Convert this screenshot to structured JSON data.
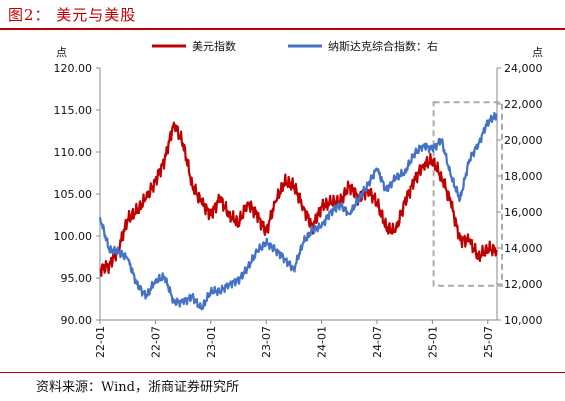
{
  "header": {
    "figure_title": "图2：   美元与美股"
  },
  "footer": {
    "source": "资料来源：Wind，浙商证券研究所"
  },
  "chart_data": {
    "type": "line",
    "left_unit": "点",
    "right_unit": "点",
    "legend_placement": "top-center",
    "x_ticks": [
      "22-01",
      "22-07",
      "23-01",
      "23-07",
      "24-01",
      "24-07",
      "25-01",
      "25-07"
    ],
    "x_range": [
      "2022-01",
      "2025-08"
    ],
    "y_left": {
      "ticks": [
        "90.00",
        "95.00",
        "100.00",
        "105.00",
        "110.00",
        "115.00",
        "120.00"
      ],
      "ylim": [
        90,
        120
      ]
    },
    "y_right": {
      "ticks": [
        "10,000",
        "12,000",
        "14,000",
        "16,000",
        "18,000",
        "20,000",
        "22,000",
        "24,000"
      ],
      "ylim": [
        10000,
        24000
      ]
    },
    "grid": false,
    "series": [
      {
        "name": "美元指数",
        "axis": "left",
        "color": "#c00000",
        "x": [
          "2022-01",
          "2022-02",
          "2022-03",
          "2022-04",
          "2022-05",
          "2022-06",
          "2022-07",
          "2022-08",
          "2022-09",
          "2022-10",
          "2022-11",
          "2022-12",
          "2023-01",
          "2023-02",
          "2023-03",
          "2023-04",
          "2023-05",
          "2023-06",
          "2023-07",
          "2023-08",
          "2023-09",
          "2023-10",
          "2023-11",
          "2023-12",
          "2024-01",
          "2024-02",
          "2024-03",
          "2024-04",
          "2024-05",
          "2024-06",
          "2024-07",
          "2024-08",
          "2024-09",
          "2024-10",
          "2024-11",
          "2024-12",
          "2025-01",
          "2025-02",
          "2025-03",
          "2025-04",
          "2025-05",
          "2025-06",
          "2025-07",
          "2025-08"
        ],
        "values": [
          96.0,
          96.5,
          98.5,
          102.0,
          103.0,
          104.5,
          106.5,
          109.0,
          113.5,
          111.0,
          106.0,
          104.0,
          102.5,
          104.5,
          102.5,
          101.5,
          104.0,
          102.5,
          100.5,
          104.0,
          106.5,
          106.0,
          103.5,
          101.0,
          103.5,
          104.0,
          104.0,
          106.0,
          104.5,
          105.5,
          104.0,
          101.0,
          100.5,
          104.0,
          106.5,
          108.5,
          109.0,
          107.0,
          104.0,
          99.5,
          99.5,
          97.5,
          98.5,
          98.3
        ]
      },
      {
        "name": "纳斯达克综合指数：右",
        "axis": "right",
        "color": "#4472c4",
        "x": [
          "2022-01",
          "2022-02",
          "2022-03",
          "2022-04",
          "2022-05",
          "2022-06",
          "2022-07",
          "2022-08",
          "2022-09",
          "2022-10",
          "2022-11",
          "2022-12",
          "2023-01",
          "2023-02",
          "2023-03",
          "2023-04",
          "2023-05",
          "2023-06",
          "2023-07",
          "2023-08",
          "2023-09",
          "2023-10",
          "2023-11",
          "2023-12",
          "2024-01",
          "2024-02",
          "2024-03",
          "2024-04",
          "2024-05",
          "2024-06",
          "2024-07",
          "2024-08",
          "2024-09",
          "2024-10",
          "2024-11",
          "2024-12",
          "2025-01",
          "2025-02",
          "2025-03",
          "2025-04",
          "2025-05",
          "2025-06",
          "2025-07",
          "2025-08"
        ],
        "values": [
          15700,
          13900,
          13800,
          13400,
          12000,
          11300,
          12200,
          12400,
          11000,
          11000,
          11300,
          10600,
          11600,
          11600,
          12000,
          12200,
          12900,
          13800,
          14300,
          13900,
          13400,
          12800,
          14300,
          15000,
          15200,
          16000,
          16400,
          15900,
          16700,
          17500,
          18400,
          17200,
          17900,
          18200,
          19200,
          19700,
          19500,
          20000,
          18000,
          16700,
          18900,
          19800,
          21000,
          21400
        ]
      }
    ],
    "annotations": [
      {
        "type": "dashed-box",
        "x_from": "2025-02",
        "x_to": "2025-08",
        "y_right_from": 11900,
        "y_right_to": 22100
      }
    ]
  }
}
